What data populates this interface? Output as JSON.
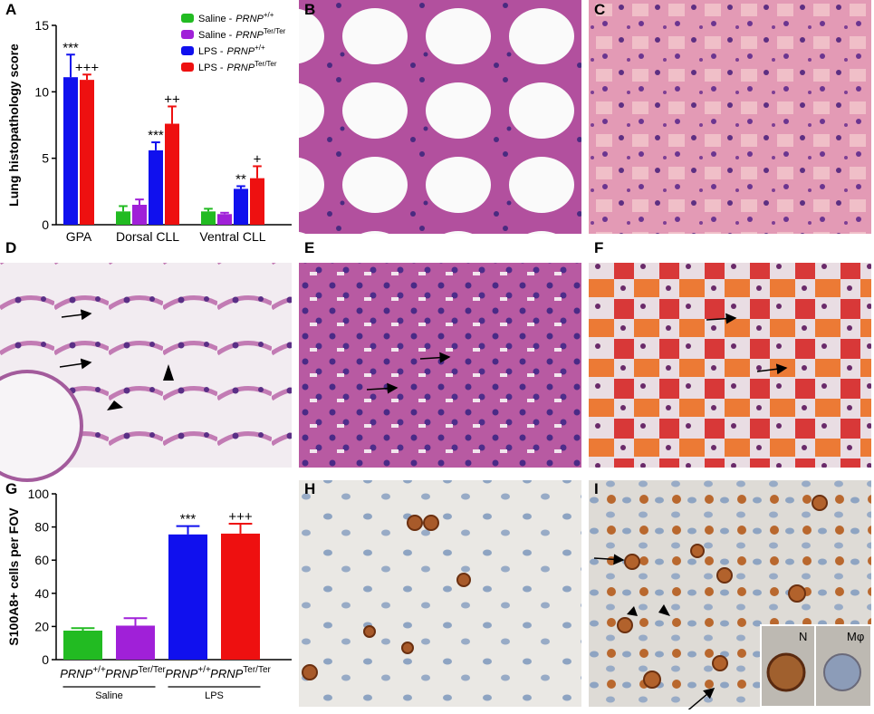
{
  "panel_labels": [
    "A",
    "B",
    "C",
    "D",
    "E",
    "F",
    "G",
    "H",
    "I"
  ],
  "inset_labels": [
    "N",
    "Mφ"
  ],
  "chart_data": [
    {
      "type": "bar",
      "y_label": "Lung histopathology score",
      "categories": [
        "GPA",
        "Dorsal CLL",
        "Ventral CLL"
      ],
      "ylim": [
        0,
        15
      ],
      "yticks": [
        0,
        5,
        10,
        15
      ],
      "series": [
        {
          "name": "Saline -",
          "gene": "PRNP",
          "superscript": "+/+",
          "color": "#22bb22",
          "values": [
            null,
            1.0,
            1.0
          ],
          "errors": [
            null,
            0.4,
            0.2
          ]
        },
        {
          "name": "Saline -",
          "gene": "PRNP",
          "superscript": "Ter/Ter",
          "color": "#a020d8",
          "values": [
            null,
            1.5,
            0.8
          ],
          "errors": [
            null,
            0.4,
            0.1
          ]
        },
        {
          "name": "LPS -",
          "gene": "PRNP",
          "superscript": "+/+",
          "color": "#1010ee",
          "values": [
            11.1,
            5.6,
            2.7
          ],
          "errors": [
            1.7,
            0.6,
            0.2
          ],
          "annotations": [
            "***",
            "***",
            "**"
          ]
        },
        {
          "name": "LPS -",
          "gene": "PRNP",
          "superscript": "Ter/Ter",
          "color": "#ee1010",
          "values": [
            10.9,
            7.6,
            3.5
          ],
          "errors": [
            0.4,
            1.3,
            0.9
          ],
          "annotations": [
            "+++",
            "++",
            "+"
          ]
        }
      ]
    },
    {
      "type": "bar",
      "y_label": "S100A8+ cells per FOV",
      "categories": [
        "PRNP",
        "PRNP",
        "PRNP",
        "PRNP"
      ],
      "category_superscripts": [
        "+/+",
        "Ter/Ter",
        "+/+",
        "Ter/Ter"
      ],
      "group_labels": [
        "Saline",
        "LPS"
      ],
      "ylim": [
        0,
        100
      ],
      "yticks": [
        0,
        20,
        40,
        60,
        80,
        100
      ],
      "values": [
        17.5,
        20.5,
        75.5,
        76
      ],
      "errors": [
        1.5,
        4.5,
        5,
        6
      ],
      "colors": [
        "#22bb22",
        "#a020d8",
        "#1010ee",
        "#ee1010"
      ],
      "annotations": [
        null,
        null,
        "***",
        "+++"
      ]
    }
  ]
}
